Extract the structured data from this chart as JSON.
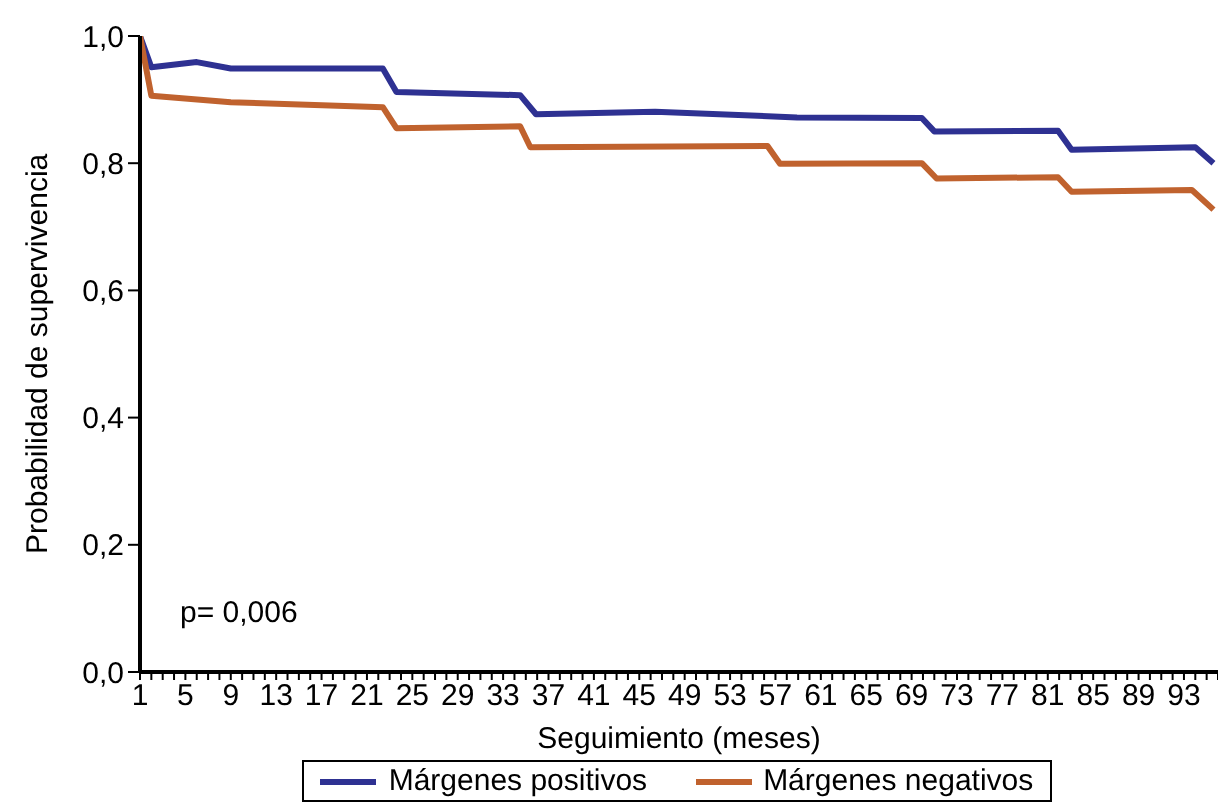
{
  "chart_data": {
    "type": "line",
    "xlabel": "Seguimiento (meses)",
    "ylabel": "Probabilidad de supervivencia",
    "annotations": [
      "p= 0,006"
    ],
    "series": [
      {
        "name": "Márgenes positivos",
        "color": "#2e3192",
        "x": [
          1,
          2,
          6,
          9,
          22.4,
          23.6,
          34.5,
          35.9,
          46.4,
          58.9,
          69.9,
          71,
          81.9,
          83.1,
          94,
          95.6
        ],
        "values": [
          1.0,
          0.951,
          0.959,
          0.949,
          0.949,
          0.912,
          0.907,
          0.877,
          0.881,
          0.872,
          0.871,
          0.85,
          0.851,
          0.821,
          0.825,
          0.8
        ]
      },
      {
        "name": "Márgenes negativos",
        "color": "#c0622e",
        "x": [
          1,
          2,
          9,
          22.4,
          23.6,
          34.5,
          35.4,
          56.3,
          57.4,
          69.9,
          71.2,
          81.9,
          83.1,
          93.7,
          95.6
        ],
        "values": [
          1.0,
          0.906,
          0.896,
          0.888,
          0.855,
          0.858,
          0.825,
          0.827,
          0.799,
          0.8,
          0.776,
          0.778,
          0.755,
          0.758,
          0.727
        ]
      }
    ],
    "xlim": [
      1,
      96
    ],
    "xticks": [
      1,
      {
        "value": 2,
        "label": null
      },
      {
        "value": 3,
        "label": null
      },
      {
        "value": 4,
        "label": null
      },
      5,
      {
        "value": 6,
        "label": null
      },
      {
        "value": 7,
        "label": null
      },
      {
        "value": 8,
        "label": null
      },
      9,
      {
        "value": 10,
        "label": null
      },
      {
        "value": 11,
        "label": null
      },
      {
        "value": 12,
        "label": null
      },
      13,
      {
        "value": 14,
        "label": null
      },
      {
        "value": 15,
        "label": null
      },
      {
        "value": 16,
        "label": null
      },
      17,
      {
        "value": 18,
        "label": null
      },
      {
        "value": 19,
        "label": null
      },
      {
        "value": 20,
        "label": null
      },
      21,
      {
        "value": 22,
        "label": null
      },
      {
        "value": 23,
        "label": null
      },
      {
        "value": 24,
        "label": null
      },
      25,
      {
        "value": 26,
        "label": null
      },
      {
        "value": 27,
        "label": null
      },
      {
        "value": 28,
        "label": null
      },
      29,
      {
        "value": 30,
        "label": null
      },
      {
        "value": 31,
        "label": null
      },
      {
        "value": 32,
        "label": null
      },
      33,
      {
        "value": 34,
        "label": null
      },
      {
        "value": 35,
        "label": null
      },
      {
        "value": 36,
        "label": null
      },
      37,
      {
        "value": 38,
        "label": null
      },
      {
        "value": 39,
        "label": null
      },
      {
        "value": 40,
        "label": null
      },
      41,
      {
        "value": 42,
        "label": null
      },
      {
        "value": 43,
        "label": null
      },
      {
        "value": 44,
        "label": null
      },
      45,
      {
        "value": 46,
        "label": null
      },
      {
        "value": 47,
        "label": null
      },
      {
        "value": 48,
        "label": null
      },
      49,
      {
        "value": 50,
        "label": null
      },
      {
        "value": 51,
        "label": null
      },
      {
        "value": 52,
        "label": null
      },
      53,
      {
        "value": 54,
        "label": null
      },
      {
        "value": 55,
        "label": null
      },
      {
        "value": 56,
        "label": null
      },
      57,
      {
        "value": 58,
        "label": null
      },
      {
        "value": 59,
        "label": null
      },
      {
        "value": 60,
        "label": null
      },
      61,
      {
        "value": 62,
        "label": null
      },
      {
        "value": 63,
        "label": null
      },
      {
        "value": 64,
        "label": null
      },
      65,
      {
        "value": 66,
        "label": null
      },
      {
        "value": 67,
        "label": null
      },
      {
        "value": 68,
        "label": null
      },
      69,
      {
        "value": 70,
        "label": null
      },
      {
        "value": 71,
        "label": null
      },
      {
        "value": 72,
        "label": null
      },
      73,
      {
        "value": 74,
        "label": null
      },
      {
        "value": 75,
        "label": null
      },
      {
        "value": 76,
        "label": null
      },
      77,
      {
        "value": 78,
        "label": null
      },
      {
        "value": 79,
        "label": null
      },
      {
        "value": 80,
        "label": null
      },
      81,
      {
        "value": 82,
        "label": null
      },
      {
        "value": 83,
        "label": null
      },
      {
        "value": 84,
        "label": null
      },
      85,
      {
        "value": 86,
        "label": null
      },
      {
        "value": 87,
        "label": null
      },
      {
        "value": 88,
        "label": null
      },
      89,
      {
        "value": 90,
        "label": null
      },
      {
        "value": 91,
        "label": null
      },
      {
        "value": 92,
        "label": null
      },
      93,
      {
        "value": 94,
        "label": null
      },
      {
        "value": 95,
        "label": null
      },
      {
        "value": 96,
        "label": null
      }
    ],
    "ylim": [
      0,
      1
    ],
    "yticks": [
      {
        "value": 0,
        "label": "0,0"
      },
      {
        "value": 0.2,
        "label": "0,2"
      },
      {
        "value": 0.4,
        "label": "0,4"
      },
      {
        "value": 0.6,
        "label": "0,6"
      },
      {
        "value": 0.8,
        "label": "0,8"
      },
      {
        "value": 1,
        "label": "1,0"
      }
    ],
    "grid": false,
    "legend": "bottom",
    "marker": "none",
    "line_style": "solid"
  }
}
